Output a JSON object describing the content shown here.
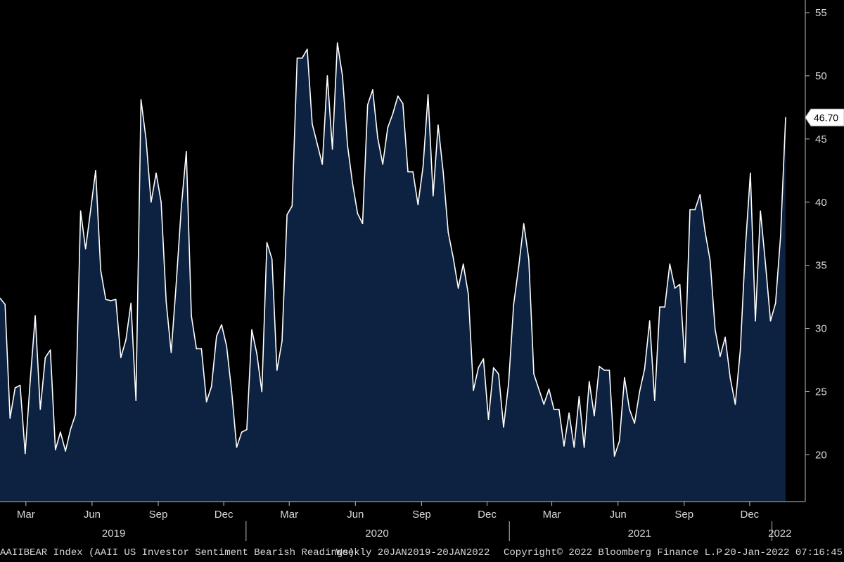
{
  "chart_data": {
    "type": "area",
    "x_start": "2019-01-24",
    "x_end": "2022-01-20",
    "frequency": "weekly",
    "values": [
      32.4,
      31.9,
      22.9,
      25.3,
      25.5,
      20.1,
      25.9,
      31.0,
      23.6,
      27.7,
      28.3,
      20.4,
      21.8,
      20.3,
      22.0,
      23.2,
      39.3,
      36.3,
      39.4,
      42.5,
      34.6,
      32.3,
      32.2,
      32.3,
      27.7,
      29.1,
      32.0,
      24.3,
      48.1,
      45.0,
      40.0,
      42.3,
      40.0,
      32.1,
      28.1,
      33.6,
      39.6,
      44.0,
      31.0,
      28.4,
      28.4,
      24.2,
      25.4,
      29.4,
      30.3,
      28.6,
      25.0,
      20.6,
      21.8,
      22.0,
      29.9,
      28.0,
      25.0,
      36.8,
      35.5,
      26.7,
      29.0,
      39.0,
      39.7,
      51.4,
      51.4,
      52.1,
      46.2,
      44.6,
      43.0,
      50.0,
      44.2,
      52.6,
      50.0,
      44.5,
      41.5,
      39.1,
      38.3,
      47.7,
      48.9,
      45.1,
      43.0,
      45.9,
      47.0,
      48.4,
      47.8,
      42.4,
      42.4,
      39.8,
      42.8,
      48.5,
      40.5,
      46.1,
      42.4,
      37.6,
      35.6,
      33.2,
      35.1,
      32.7,
      25.1,
      26.9,
      27.6,
      22.8,
      26.9,
      26.4,
      22.2,
      25.7,
      31.9,
      34.9,
      38.3,
      35.5,
      26.4,
      25.2,
      24.0,
      25.2,
      23.6,
      23.6,
      20.7,
      23.3,
      20.6,
      24.6,
      20.6,
      25.8,
      23.1,
      27.0,
      26.7,
      26.7,
      19.9,
      21.1,
      26.1,
      23.6,
      22.5,
      25.0,
      26.8,
      30.6,
      24.3,
      31.7,
      31.7,
      35.1,
      33.2,
      33.5,
      27.3,
      39.4,
      39.4,
      40.6,
      37.7,
      35.4,
      29.9,
      27.8,
      29.3,
      26.1,
      24.0,
      28.3,
      36.3,
      42.3,
      30.6,
      39.3,
      35.1,
      30.6,
      32.0,
      37.3,
      46.7
    ],
    "last_value_label": "46.70",
    "ylim": [
      16.3,
      56
    ],
    "yticks": [
      20,
      25,
      30,
      35,
      40,
      45,
      50,
      55
    ],
    "xticks": [
      {
        "date": "2019-03-01",
        "label": "Mar"
      },
      {
        "date": "2019-06-01",
        "label": "Jun"
      },
      {
        "date": "2019-09-01",
        "label": "Sep"
      },
      {
        "date": "2019-12-01",
        "label": "Dec"
      },
      {
        "date": "2020-03-01",
        "label": "Mar"
      },
      {
        "date": "2020-06-01",
        "label": "Jun"
      },
      {
        "date": "2020-09-01",
        "label": "Sep"
      },
      {
        "date": "2020-12-01",
        "label": "Dec"
      },
      {
        "date": "2021-03-01",
        "label": "Mar"
      },
      {
        "date": "2021-06-01",
        "label": "Jun"
      },
      {
        "date": "2021-09-01",
        "label": "Sep"
      },
      {
        "date": "2021-12-01",
        "label": "Dec"
      }
    ],
    "year_labels": [
      {
        "date": "2019-07-01",
        "label": "2019"
      },
      {
        "date": "2020-07-01",
        "label": "2020"
      },
      {
        "date": "2021-07-01",
        "label": "2021"
      },
      {
        "date": "2022-01-12",
        "label": "2022"
      }
    ],
    "year_dividers": [
      "2020-01-01",
      "2021-01-01",
      "2022-01-01"
    ],
    "grid": false,
    "legend": "none"
  },
  "colors": {
    "background": "#000000",
    "area_fill": "#0c2240",
    "line": "#ffffff",
    "axis": "#bfbfbf",
    "text": "#d8d8d8"
  },
  "footer": {
    "series": "AAIIBEAR Index (AAII US Investor Sentiment Bearish Readings)",
    "range": "Weekly 20JAN2019-20JAN2022",
    "copyright": "Copyright© 2022 Bloomberg Finance L.P.",
    "timestamp": "20-Jan-2022 07:16:45"
  }
}
